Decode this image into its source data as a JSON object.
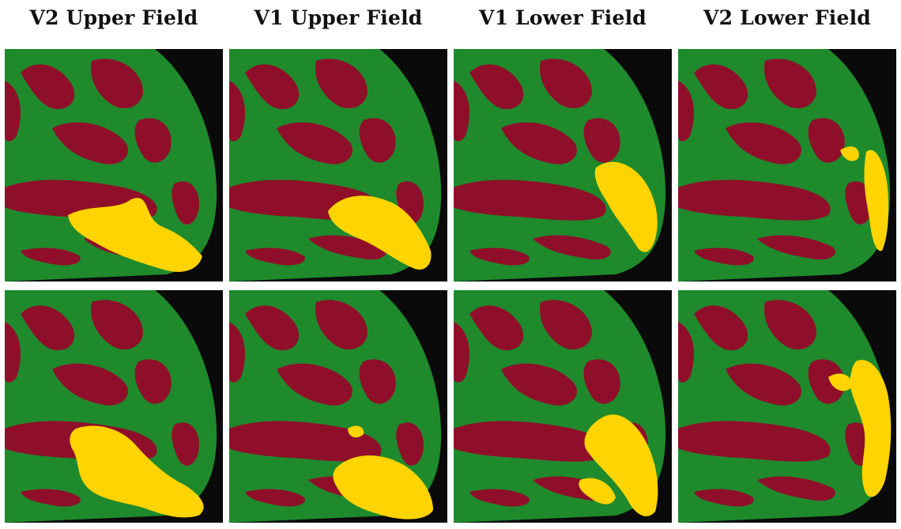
{
  "column_headings": [
    "V2 Upper Field",
    "V1 Upper Field",
    "V1 Lower Field",
    "V2 Lower Field"
  ],
  "colors": {
    "background": "#0a0a0a",
    "gyri_green": "#1f8a2c",
    "sulci_red": "#8f0f2a",
    "activation_yellow": "#ffd400",
    "page": "#ffffff"
  },
  "panels": [
    {
      "row": 1,
      "column": "V2 Upper Field"
    },
    {
      "row": 1,
      "column": "V1 Upper Field"
    },
    {
      "row": 1,
      "column": "V1 Lower Field"
    },
    {
      "row": 1,
      "column": "V2 Lower Field"
    },
    {
      "row": 2,
      "column": "V2 Upper Field"
    },
    {
      "row": 2,
      "column": "V1 Upper Field"
    },
    {
      "row": 2,
      "column": "V1 Lower Field"
    },
    {
      "row": 2,
      "column": "V2 Lower Field"
    }
  ]
}
